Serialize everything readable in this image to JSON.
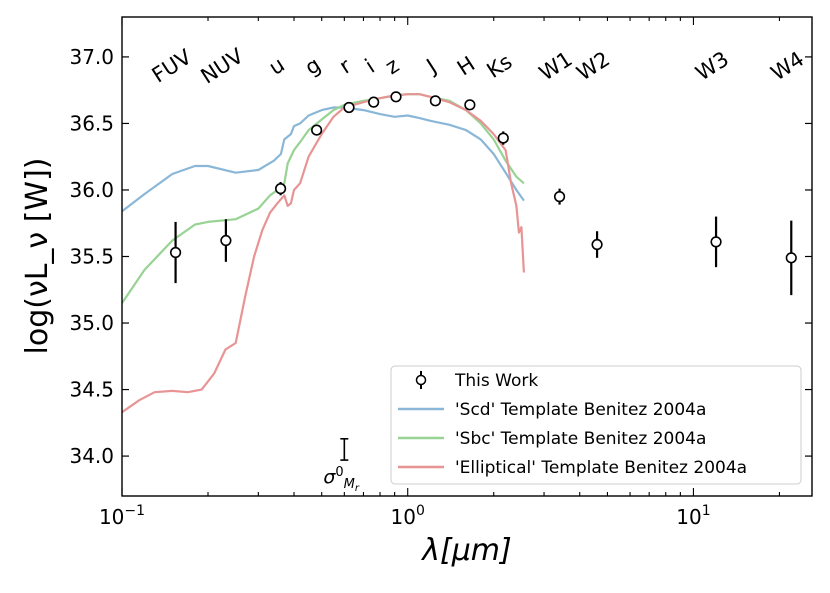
{
  "chart_data": {
    "type": "line",
    "xscale": "log",
    "xlim": [
      0.1,
      26
    ],
    "ylim": [
      33.7,
      37.3
    ],
    "xlabel": "λ[μm]",
    "ylabel": "log(νL_ν [W])",
    "xticks": [
      {
        "value": 0.1,
        "label": "10",
        "exp": "−1"
      },
      {
        "value": 1,
        "label": "10",
        "exp": "0"
      },
      {
        "value": 10,
        "label": "10",
        "exp": "1"
      }
    ],
    "yticks": [
      {
        "value": 34.0,
        "label": "34.0"
      },
      {
        "value": 34.5,
        "label": "34.5"
      },
      {
        "value": 35.0,
        "label": "35.0"
      },
      {
        "value": 35.5,
        "label": "35.5"
      },
      {
        "value": 36.0,
        "label": "36.0"
      },
      {
        "value": 36.5,
        "label": "36.5"
      },
      {
        "value": 37.0,
        "label": "37.0"
      }
    ],
    "bands": [
      {
        "name": "FUV",
        "x": 0.154
      },
      {
        "name": "NUV",
        "x": 0.231
      },
      {
        "name": "u",
        "x": 0.359
      },
      {
        "name": "g",
        "x": 0.48
      },
      {
        "name": "r",
        "x": 0.623
      },
      {
        "name": "i",
        "x": 0.76
      },
      {
        "name": "z",
        "x": 0.91
      },
      {
        "name": "J",
        "x": 1.25
      },
      {
        "name": "H",
        "x": 1.65
      },
      {
        "name": "Ks",
        "x": 2.16
      },
      {
        "name": "W1",
        "x": 3.4
      },
      {
        "name": "W2",
        "x": 4.6
      },
      {
        "name": "W3",
        "x": 12.0
      },
      {
        "name": "W4",
        "x": 22.0
      }
    ],
    "measurements": {
      "name": "This Work",
      "points": [
        {
          "x": 0.154,
          "y": 35.53,
          "err": 0.23
        },
        {
          "x": 0.231,
          "y": 35.62,
          "err": 0.16
        },
        {
          "x": 0.359,
          "y": 36.01,
          "err": 0.05
        },
        {
          "x": 0.48,
          "y": 36.45,
          "err": 0.03
        },
        {
          "x": 0.623,
          "y": 36.62,
          "err": 0.02
        },
        {
          "x": 0.76,
          "y": 36.66,
          "err": 0.02
        },
        {
          "x": 0.91,
          "y": 36.7,
          "err": 0.02
        },
        {
          "x": 1.25,
          "y": 36.67,
          "err": 0.03
        },
        {
          "x": 1.65,
          "y": 36.64,
          "err": 0.04
        },
        {
          "x": 2.16,
          "y": 36.39,
          "err": 0.05
        },
        {
          "x": 3.4,
          "y": 35.95,
          "err": 0.06
        },
        {
          "x": 4.6,
          "y": 35.59,
          "err": 0.1
        },
        {
          "x": 12.0,
          "y": 35.61,
          "err": 0.19
        },
        {
          "x": 22.0,
          "y": 35.49,
          "err": 0.28
        }
      ]
    },
    "series": [
      {
        "name": "'Scd' Template Benitez 2004a",
        "color": "#8ab7d8",
        "points": [
          [
            0.1,
            35.84
          ],
          [
            0.12,
            35.97
          ],
          [
            0.15,
            36.12
          ],
          [
            0.18,
            36.18
          ],
          [
            0.2,
            36.18
          ],
          [
            0.25,
            36.13
          ],
          [
            0.3,
            36.15
          ],
          [
            0.34,
            36.22
          ],
          [
            0.36,
            36.27
          ],
          [
            0.37,
            36.38
          ],
          [
            0.39,
            36.42
          ],
          [
            0.4,
            36.48
          ],
          [
            0.42,
            36.5
          ],
          [
            0.45,
            36.56
          ],
          [
            0.5,
            36.6
          ],
          [
            0.55,
            36.62
          ],
          [
            0.6,
            36.62
          ],
          [
            0.7,
            36.6
          ],
          [
            0.8,
            36.57
          ],
          [
            0.9,
            36.55
          ],
          [
            1.0,
            36.56
          ],
          [
            1.1,
            36.54
          ],
          [
            1.2,
            36.52
          ],
          [
            1.4,
            36.49
          ],
          [
            1.6,
            36.45
          ],
          [
            1.8,
            36.38
          ],
          [
            2.0,
            36.27
          ],
          [
            2.2,
            36.13
          ],
          [
            2.4,
            36.0
          ],
          [
            2.55,
            35.92
          ]
        ]
      },
      {
        "name": "'Sbc' Template Benitez 2004a",
        "color": "#98d394",
        "points": [
          [
            0.1,
            35.15
          ],
          [
            0.12,
            35.4
          ],
          [
            0.15,
            35.62
          ],
          [
            0.18,
            35.74
          ],
          [
            0.2,
            35.76
          ],
          [
            0.25,
            35.78
          ],
          [
            0.3,
            35.86
          ],
          [
            0.33,
            35.96
          ],
          [
            0.35,
            36.0
          ],
          [
            0.37,
            36.05
          ],
          [
            0.38,
            36.2
          ],
          [
            0.4,
            36.3
          ],
          [
            0.42,
            36.36
          ],
          [
            0.45,
            36.45
          ],
          [
            0.5,
            36.53
          ],
          [
            0.55,
            36.6
          ],
          [
            0.6,
            36.64
          ],
          [
            0.7,
            36.67
          ],
          [
            0.8,
            36.69
          ],
          [
            0.9,
            36.71
          ],
          [
            1.0,
            36.72
          ],
          [
            1.1,
            36.72
          ],
          [
            1.2,
            36.7
          ],
          [
            1.4,
            36.67
          ],
          [
            1.6,
            36.6
          ],
          [
            1.8,
            36.5
          ],
          [
            2.0,
            36.38
          ],
          [
            2.2,
            36.22
          ],
          [
            2.4,
            36.1
          ],
          [
            2.55,
            36.05
          ]
        ]
      },
      {
        "name": "'Elliptical' Template Benitez 2004a",
        "color": "#e89494",
        "points": [
          [
            0.1,
            34.33
          ],
          [
            0.115,
            34.42
          ],
          [
            0.13,
            34.48
          ],
          [
            0.15,
            34.49
          ],
          [
            0.17,
            34.48
          ],
          [
            0.19,
            34.5
          ],
          [
            0.21,
            34.62
          ],
          [
            0.23,
            34.8
          ],
          [
            0.25,
            34.85
          ],
          [
            0.27,
            35.2
          ],
          [
            0.29,
            35.5
          ],
          [
            0.31,
            35.7
          ],
          [
            0.33,
            35.83
          ],
          [
            0.35,
            35.9
          ],
          [
            0.37,
            35.96
          ],
          [
            0.38,
            35.88
          ],
          [
            0.39,
            35.9
          ],
          [
            0.4,
            36.0
          ],
          [
            0.42,
            36.05
          ],
          [
            0.45,
            36.25
          ],
          [
            0.5,
            36.42
          ],
          [
            0.55,
            36.55
          ],
          [
            0.6,
            36.62
          ],
          [
            0.7,
            36.66
          ],
          [
            0.8,
            36.69
          ],
          [
            0.9,
            36.71
          ],
          [
            1.0,
            36.72
          ],
          [
            1.1,
            36.72
          ],
          [
            1.2,
            36.7
          ],
          [
            1.4,
            36.66
          ],
          [
            1.6,
            36.6
          ],
          [
            1.8,
            36.52
          ],
          [
            2.0,
            36.42
          ],
          [
            2.2,
            36.3
          ],
          [
            2.3,
            36.05
          ],
          [
            2.4,
            35.88
          ],
          [
            2.45,
            35.68
          ],
          [
            2.5,
            35.72
          ],
          [
            2.55,
            35.38
          ]
        ]
      }
    ],
    "annotation": {
      "label": "σ",
      "sup": "0",
      "sub": "M",
      "subsub": "r",
      "x": 0.6,
      "y_center": 34.05,
      "half_height": 0.08
    },
    "legend": {
      "position": "lower-right"
    }
  }
}
